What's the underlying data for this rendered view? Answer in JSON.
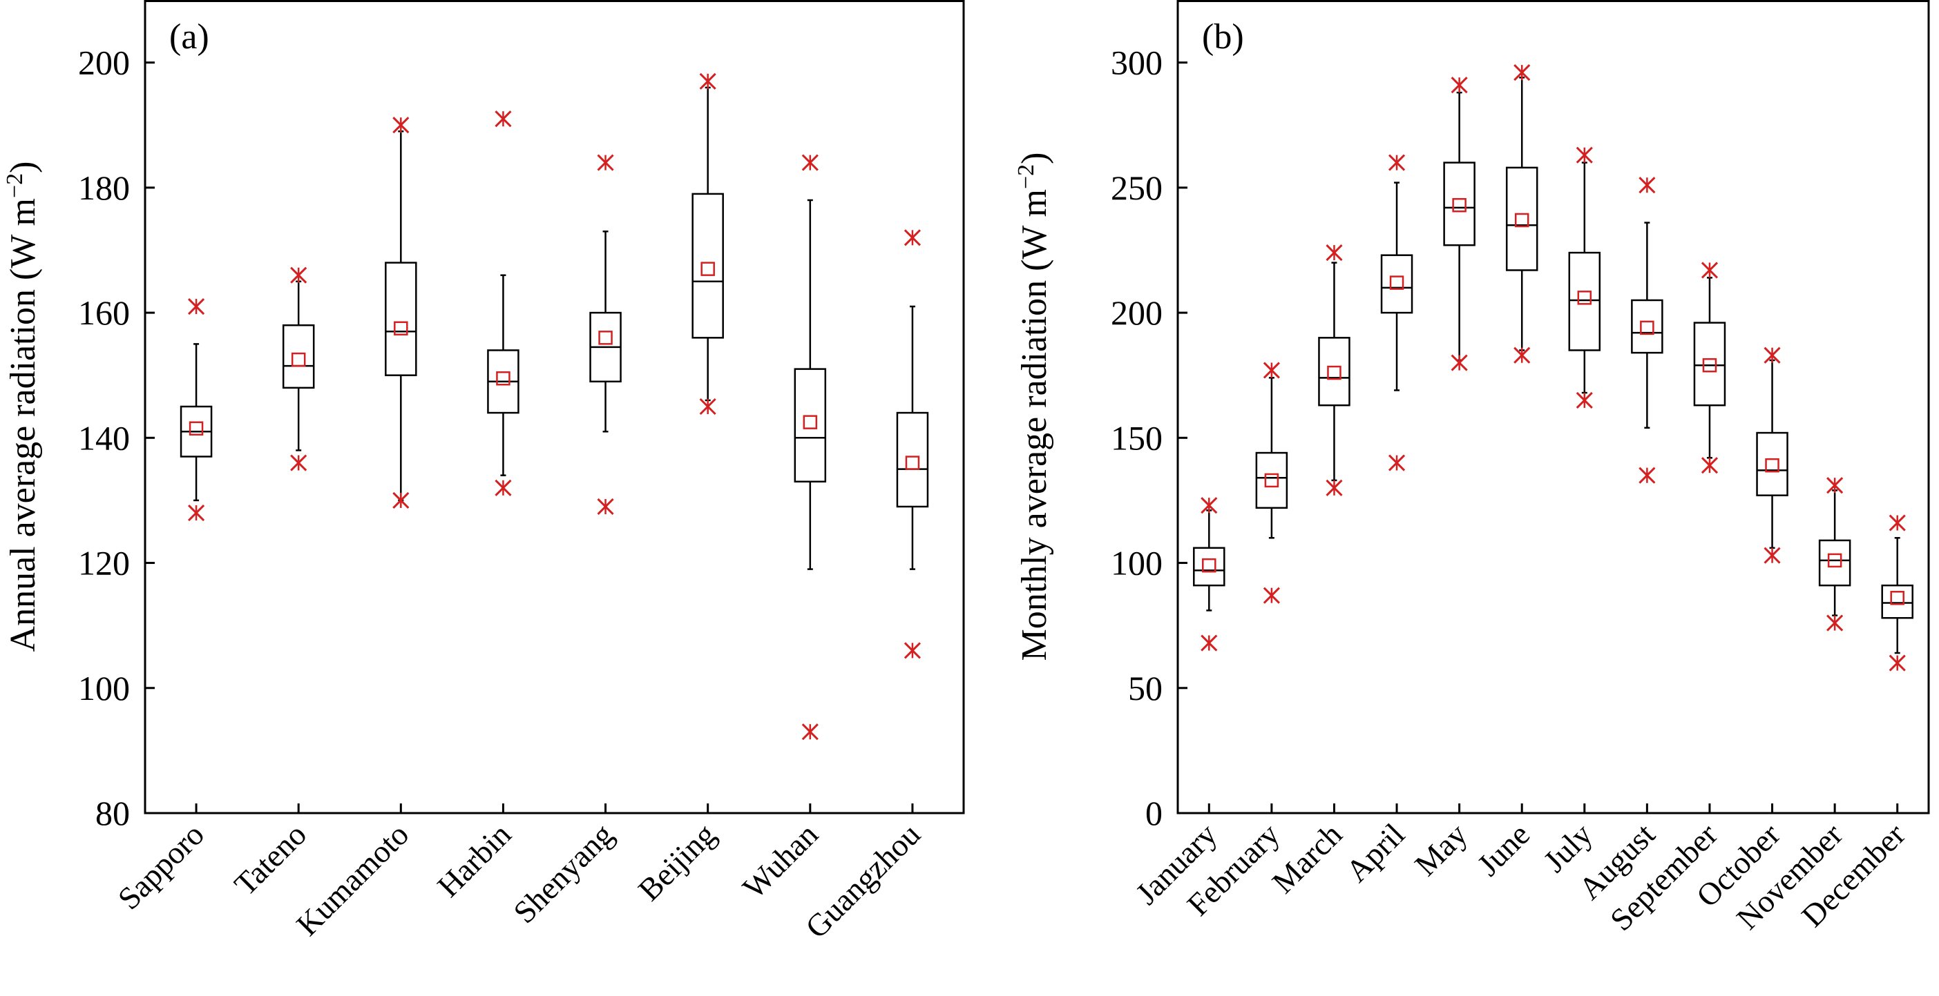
{
  "chart_data": [
    {
      "type": "box",
      "panel_label": "(a)",
      "ylabel": "Annual average radiation (W m",
      "ylabel_sup": "−2",
      "ylabel_close": ")",
      "ylim": [
        80,
        210
      ],
      "yticks": [
        "80",
        "100",
        "120",
        "140",
        "160",
        "180",
        "200"
      ],
      "ytick_values": [
        80,
        100,
        120,
        140,
        160,
        180,
        200
      ],
      "categories": [
        "Sapporo",
        "Tateno",
        "Kumamoto",
        "Harbin",
        "Shenyang",
        "Beijing",
        "Wuhan",
        "Guangzhou"
      ],
      "boxes": [
        {
          "whisker_low": 130,
          "q1": 137,
          "median": 141,
          "q3": 145,
          "whisker_high": 155,
          "mean": 141.5,
          "outlier_low": 128,
          "outlier_high": 161
        },
        {
          "whisker_low": 138,
          "q1": 148,
          "median": 151.5,
          "q3": 158,
          "whisker_high": 165,
          "mean": 152.5,
          "outlier_low": 136,
          "outlier_high": 166
        },
        {
          "whisker_low": 130,
          "q1": 150,
          "median": 157,
          "q3": 168,
          "whisker_high": 189,
          "mean": 157.5,
          "outlier_low": 130,
          "outlier_high": 190
        },
        {
          "whisker_low": 134,
          "q1": 144,
          "median": 149,
          "q3": 154,
          "whisker_high": 166,
          "mean": 149.5,
          "outlier_low": 132,
          "outlier_high": 191
        },
        {
          "whisker_low": 141,
          "q1": 149,
          "median": 154.5,
          "q3": 160,
          "whisker_high": 173,
          "mean": 156,
          "outlier_low": 129,
          "outlier_high": 184
        },
        {
          "whisker_low": 146,
          "q1": 156,
          "median": 165,
          "q3": 179,
          "whisker_high": 196,
          "mean": 167,
          "outlier_low": 145,
          "outlier_high": 197
        },
        {
          "whisker_low": 119,
          "q1": 133,
          "median": 140,
          "q3": 151,
          "whisker_high": 178,
          "mean": 142.5,
          "outlier_low": 93,
          "outlier_high": 184
        },
        {
          "whisker_low": 119,
          "q1": 129,
          "median": 135,
          "q3": 144,
          "whisker_high": 161,
          "mean": 136,
          "outlier_low": 106,
          "outlier_high": 172
        }
      ],
      "colors": {
        "box": "#000000",
        "mean": "#d42020",
        "outlier": "#d42020"
      }
    },
    {
      "type": "box",
      "panel_label": "(b)",
      "ylabel": "Monthly average radiation (W m",
      "ylabel_sup": "−2",
      "ylabel_close": ")",
      "ylim": [
        0,
        325
      ],
      "yticks": [
        "0",
        "50",
        "100",
        "150",
        "200",
        "250",
        "300"
      ],
      "ytick_values": [
        0,
        50,
        100,
        150,
        200,
        250,
        300
      ],
      "categories": [
        "January",
        "February",
        "March",
        "April",
        "May",
        "June",
        "July",
        "August",
        "September",
        "October",
        "November",
        "December"
      ],
      "boxes": [
        {
          "whisker_low": 81,
          "q1": 91,
          "median": 97,
          "q3": 106,
          "whisker_high": 121,
          "mean": 99,
          "outlier_low": 68,
          "outlier_high": 123
        },
        {
          "whisker_low": 110,
          "q1": 122,
          "median": 134,
          "q3": 144,
          "whisker_high": 174,
          "mean": 133,
          "outlier_low": 87,
          "outlier_high": 177
        },
        {
          "whisker_low": 133,
          "q1": 163,
          "median": 174,
          "q3": 190,
          "whisker_high": 220,
          "mean": 176,
          "outlier_low": 130,
          "outlier_high": 224
        },
        {
          "whisker_low": 169,
          "q1": 200,
          "median": 210,
          "q3": 223,
          "whisker_high": 252,
          "mean": 212,
          "outlier_low": 140,
          "outlier_high": 260
        },
        {
          "whisker_low": 181,
          "q1": 227,
          "median": 242,
          "q3": 260,
          "whisker_high": 288,
          "mean": 243,
          "outlier_low": 180,
          "outlier_high": 291
        },
        {
          "whisker_low": 185,
          "q1": 217,
          "median": 235,
          "q3": 258,
          "whisker_high": 294,
          "mean": 237,
          "outlier_low": 183,
          "outlier_high": 296
        },
        {
          "whisker_low": 168,
          "q1": 185,
          "median": 205,
          "q3": 224,
          "whisker_high": 260,
          "mean": 206,
          "outlier_low": 165,
          "outlier_high": 263
        },
        {
          "whisker_low": 154,
          "q1": 184,
          "median": 192,
          "q3": 205,
          "whisker_high": 236,
          "mean": 194,
          "outlier_low": 135,
          "outlier_high": 251
        },
        {
          "whisker_low": 142,
          "q1": 163,
          "median": 179,
          "q3": 196,
          "whisker_high": 214,
          "mean": 179,
          "outlier_low": 139,
          "outlier_high": 217
        },
        {
          "whisker_low": 106,
          "q1": 127,
          "median": 137,
          "q3": 152,
          "whisker_high": 181,
          "mean": 139,
          "outlier_low": 103,
          "outlier_high": 183
        },
        {
          "whisker_low": 79,
          "q1": 91,
          "median": 101,
          "q3": 109,
          "whisker_high": 129,
          "mean": 101,
          "outlier_low": 76,
          "outlier_high": 131
        },
        {
          "whisker_low": 64,
          "q1": 78,
          "median": 84,
          "q3": 91,
          "whisker_high": 110,
          "mean": 86,
          "outlier_low": 60,
          "outlier_high": 116
        }
      ],
      "colors": {
        "box": "#000000",
        "mean": "#d42020",
        "outlier": "#d42020"
      }
    }
  ]
}
